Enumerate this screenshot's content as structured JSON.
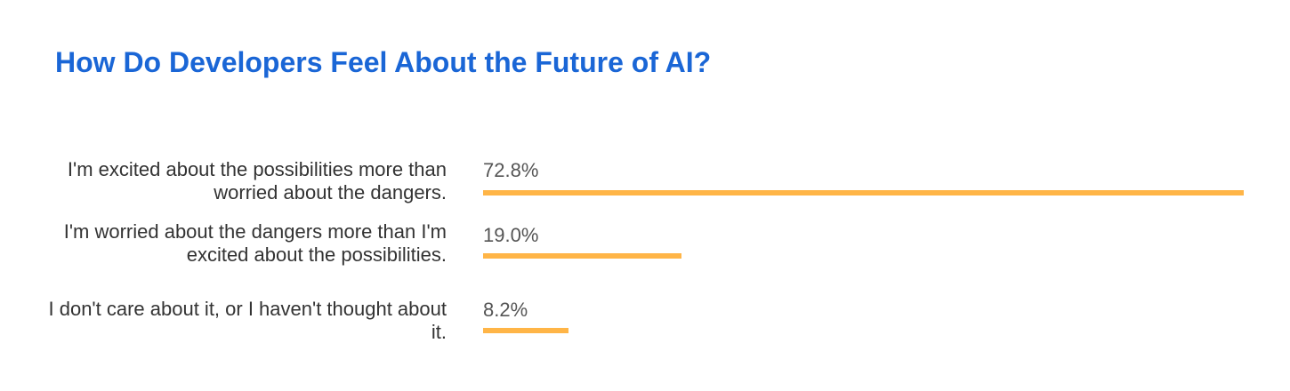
{
  "chart_data": {
    "type": "bar",
    "orientation": "horizontal",
    "title": "How Do Developers Feel About the Future of AI?",
    "categories": [
      "I'm excited about the possibilities more than worried about the dangers.",
      "I'm worried about the dangers more than I'm excited about the possibilities.",
      "I don't care about it, or I haven't thought about it."
    ],
    "values": [
      72.8,
      19.0,
      8.2
    ],
    "value_labels": [
      "72.8%",
      "19.0%",
      "8.2%"
    ],
    "unit": "%",
    "xlim": [
      0,
      72.8
    ],
    "grid": false,
    "legend": "none",
    "colors": {
      "bar": "#ffb547",
      "title": "#1a66d6"
    }
  }
}
